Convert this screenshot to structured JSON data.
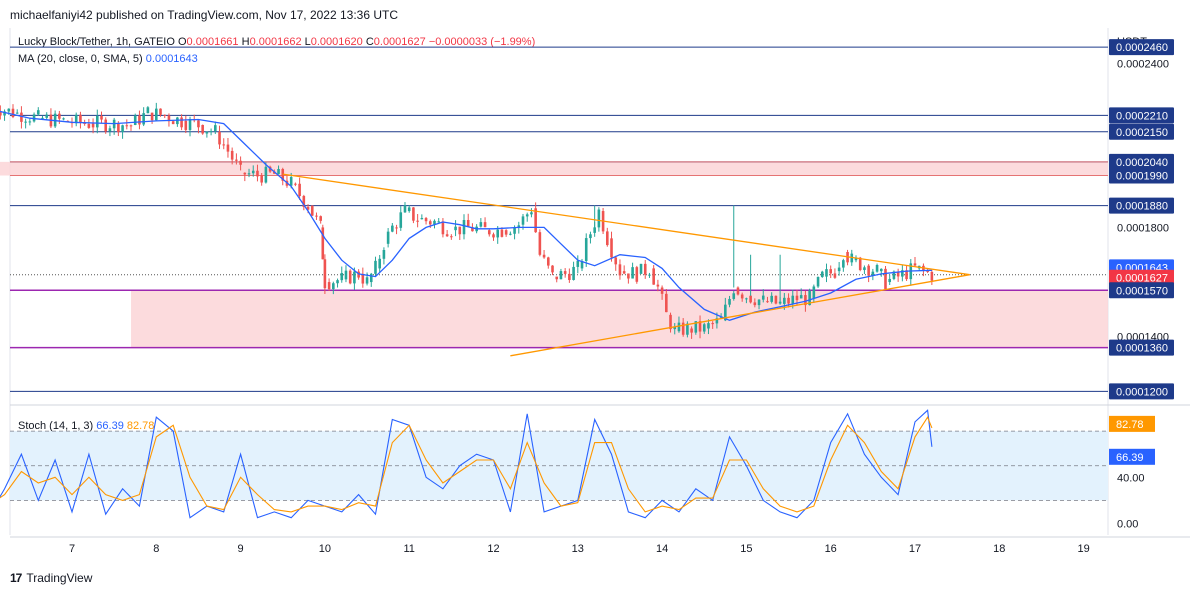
{
  "publisher": "michaelfaniyi42 published on TradingView.com, Nov 17, 2022 13:36 UTC",
  "symbol": {
    "name": "Lucky Block/Tether, 1h, GATEIO",
    "o_label": "O",
    "o": "0.0001661",
    "h_label": "H",
    "h": "0.0001662",
    "l_label": "L",
    "l": "0.0001620",
    "c_label": "C",
    "c": "0.0001627",
    "change": "−0.0000033 (−1.99%)"
  },
  "ma": {
    "label": "MA (20, close, 0, SMA, 5)",
    "value": "0.0001643"
  },
  "stoch": {
    "label": "Stoch (14, 1, 3)",
    "k": "66.39",
    "d": "82.78"
  },
  "currency": "USDT",
  "brand": "TradingView",
  "colors": {
    "bull": "#26a69a",
    "bear": "#ef5350",
    "ma": "#2962ff",
    "trendline": "#ff9800",
    "level": "#1e3a8a",
    "zone": "#fcd5d7",
    "zone_border": "#9c27b0",
    "stoch_band": "#e3f2fd"
  },
  "chart_data": [
    {
      "type": "candlestick",
      "x_tick_labels": [
        "7",
        "8",
        "9",
        "10",
        "11",
        "12",
        "13",
        "14",
        "15",
        "16",
        "17",
        "18",
        "19"
      ],
      "y_axis_labels": [
        "0.0002400",
        "0.0001800",
        "0.0001400"
      ],
      "ylim": [
        0.000115,
        0.000253
      ],
      "price_labels": [
        {
          "text": "0.0002460",
          "value": 0.000246,
          "kind": "level"
        },
        {
          "text": "0.0002210",
          "value": 0.000221,
          "kind": "level"
        },
        {
          "text": "0.0002150",
          "value": 0.000215,
          "kind": "level"
        },
        {
          "text": "0.0002040",
          "value": 0.000204,
          "kind": "level"
        },
        {
          "text": "0.0001990",
          "value": 0.000199,
          "kind": "level"
        },
        {
          "text": "0.0001880",
          "value": 0.000188,
          "kind": "level"
        },
        {
          "text": "0.0001643",
          "value": 0.0001643,
          "kind": "ma"
        },
        {
          "text": "0.0001627",
          "value": 0.0001627,
          "kind": "last"
        },
        {
          "text": "0.0001570",
          "value": 0.000157,
          "kind": "level"
        },
        {
          "text": "0.0001360",
          "value": 0.000136,
          "kind": "level"
        },
        {
          "text": "0.0001200",
          "value": 0.00012,
          "kind": "level"
        }
      ],
      "zones": [
        {
          "from": 0.000199,
          "to": 0.000204,
          "x_start": 6.0
        },
        {
          "from": 0.000136,
          "to": 0.000157,
          "x_start": 7.7
        }
      ],
      "trendlines": [
        {
          "x": [
            9.5,
            17.65
          ],
          "y": [
            0.0001995,
            0.0001627
          ]
        },
        {
          "x": [
            12.2,
            17.65
          ],
          "y": [
            0.000133,
            0.0001627
          ]
        }
      ],
      "close_path": [
        [
          6.0,
          0.000225
        ],
        [
          6.3,
          0.000222
        ],
        [
          6.6,
          0.00022
        ],
        [
          6.9,
          0.000219
        ],
        [
          7.2,
          0.000218
        ],
        [
          7.5,
          0.000218
        ],
        [
          7.7,
          0.0002175
        ],
        [
          7.9,
          0.000222
        ],
        [
          8.1,
          0.000221
        ],
        [
          8.3,
          0.000219
        ],
        [
          8.5,
          0.0002175
        ],
        [
          8.7,
          0.000215
        ],
        [
          8.85,
          0.000208
        ],
        [
          9.0,
          0.0002
        ],
        [
          9.2,
          0.000199
        ],
        [
          9.4,
          0.0001995
        ],
        [
          9.6,
          0.000196
        ],
        [
          9.8,
          0.000188
        ],
        [
          9.95,
          0.00018
        ],
        [
          10.0,
          0.00016
        ],
        [
          10.2,
          0.000161
        ],
        [
          10.4,
          0.000163
        ],
        [
          10.5,
          0.00016
        ],
        [
          10.6,
          0.000165
        ],
        [
          10.7,
          0.000174
        ],
        [
          10.8,
          0.00018
        ],
        [
          10.95,
          0.000186
        ],
        [
          11.1,
          0.000183
        ],
        [
          11.3,
          0.000182
        ],
        [
          11.5,
          0.000179
        ],
        [
          11.7,
          0.00018
        ],
        [
          11.9,
          0.000179
        ],
        [
          12.1,
          0.000179
        ],
        [
          12.3,
          0.000181
        ],
        [
          12.45,
          0.000187
        ],
        [
          12.55,
          0.00017
        ],
        [
          12.7,
          0.000162
        ],
        [
          12.85,
          0.000163
        ],
        [
          13.0,
          0.000165
        ],
        [
          13.15,
          0.000178
        ],
        [
          13.25,
          0.000186
        ],
        [
          13.35,
          0.000176
        ],
        [
          13.5,
          0.000164
        ],
        [
          13.7,
          0.000163
        ],
        [
          13.85,
          0.000165
        ],
        [
          13.95,
          0.000158
        ],
        [
          14.05,
          0.000148
        ],
        [
          14.15,
          0.000142
        ],
        [
          14.3,
          0.000143
        ],
        [
          14.5,
          0.000143
        ],
        [
          14.7,
          0.000146
        ],
        [
          14.85,
          0.000158
        ],
        [
          15.0,
          0.000155
        ],
        [
          15.2,
          0.000153
        ],
        [
          15.4,
          0.000152
        ],
        [
          15.6,
          0.000154
        ],
        [
          15.75,
          0.000154
        ],
        [
          15.9,
          0.000162
        ],
        [
          16.05,
          0.000164
        ],
        [
          16.15,
          0.000171
        ],
        [
          16.25,
          0.000168
        ],
        [
          16.4,
          0.000166
        ],
        [
          16.55,
          0.000164
        ],
        [
          16.65,
          0.00016
        ],
        [
          16.8,
          0.000162
        ],
        [
          17.0,
          0.000165
        ],
        [
          17.2,
          0.0001627
        ]
      ],
      "spikes": [
        {
          "x": 14.85,
          "high": 0.000188
        },
        {
          "x": 15.05,
          "high": 0.00017
        },
        {
          "x": 15.4,
          "high": 0.00017
        },
        {
          "x": 13.2,
          "high": 0.000188
        }
      ],
      "ma_path": [
        [
          6.0,
          0.0002235
        ],
        [
          6.5,
          0.00022
        ],
        [
          7.0,
          0.0002185
        ],
        [
          7.5,
          0.000218
        ],
        [
          8.0,
          0.000219
        ],
        [
          8.5,
          0.0002195
        ],
        [
          8.8,
          0.000218
        ],
        [
          9.0,
          0.000212
        ],
        [
          9.3,
          0.000203
        ],
        [
          9.6,
          0.000195
        ],
        [
          9.8,
          0.000186
        ],
        [
          10.0,
          0.000176
        ],
        [
          10.2,
          0.000168
        ],
        [
          10.4,
          0.000163
        ],
        [
          10.6,
          0.000162
        ],
        [
          10.8,
          0.000168
        ],
        [
          11.0,
          0.000176
        ],
        [
          11.2,
          0.00018
        ],
        [
          11.4,
          0.000182
        ],
        [
          11.6,
          0.000181
        ],
        [
          11.8,
          0.0001795
        ],
        [
          12.0,
          0.0001795
        ],
        [
          12.3,
          0.00018
        ],
        [
          12.6,
          0.00018
        ],
        [
          12.8,
          0.000174
        ],
        [
          13.0,
          0.000168
        ],
        [
          13.2,
          0.000166
        ],
        [
          13.5,
          0.00017
        ],
        [
          13.8,
          0.000169
        ],
        [
          14.0,
          0.000165
        ],
        [
          14.2,
          0.000158
        ],
        [
          14.5,
          0.00015
        ],
        [
          14.8,
          0.000146
        ],
        [
          15.1,
          0.000149
        ],
        [
          15.4,
          0.000151
        ],
        [
          15.7,
          0.000153
        ],
        [
          16.0,
          0.000156
        ],
        [
          16.3,
          0.000161
        ],
        [
          16.6,
          0.000163
        ],
        [
          16.9,
          0.000164
        ],
        [
          17.2,
          0.0001643
        ]
      ]
    },
    {
      "type": "line",
      "title": "Stoch (14, 1, 3)",
      "y_axis_labels": [
        "40.00",
        "0.00"
      ],
      "ylim": [
        -10,
        100
      ],
      "band": [
        20,
        80
      ],
      "value_labels": [
        {
          "text": "82.78",
          "series": "D",
          "value": 82.78
        },
        {
          "text": "66.39",
          "series": "K",
          "value": 66.39
        }
      ],
      "x_tick_labels": [
        "7",
        "8",
        "9",
        "10",
        "11",
        "12",
        "13",
        "14",
        "15",
        "16",
        "17",
        "18",
        "19"
      ],
      "series": [
        {
          "name": "K",
          "x": [
            6.0,
            6.2,
            6.4,
            6.6,
            6.8,
            7.0,
            7.2,
            7.4,
            7.6,
            7.8,
            8.0,
            8.2,
            8.4,
            8.6,
            8.8,
            9.0,
            9.2,
            9.4,
            9.6,
            9.8,
            10.0,
            10.2,
            10.4,
            10.6,
            10.8,
            11.0,
            11.2,
            11.4,
            11.6,
            11.8,
            12.0,
            12.2,
            12.4,
            12.6,
            12.8,
            13.0,
            13.2,
            13.4,
            13.6,
            13.8,
            14.0,
            14.2,
            14.4,
            14.6,
            14.8,
            15.0,
            15.2,
            15.4,
            15.6,
            15.8,
            16.0,
            16.2,
            16.4,
            16.6,
            16.8,
            17.0,
            17.15,
            17.2
          ],
          "values": [
            5,
            30,
            60,
            20,
            55,
            10,
            60,
            8,
            30,
            15,
            92,
            80,
            5,
            15,
            10,
            60,
            5,
            10,
            5,
            20,
            15,
            10,
            25,
            8,
            90,
            85,
            40,
            30,
            50,
            60,
            55,
            10,
            95,
            10,
            15,
            20,
            90,
            60,
            10,
            5,
            20,
            10,
            30,
            20,
            75,
            50,
            20,
            10,
            5,
            20,
            70,
            95,
            60,
            40,
            25,
            88,
            98,
            66.39
          ]
        },
        {
          "name": "D",
          "x": [
            6.0,
            6.2,
            6.4,
            6.6,
            6.8,
            7.0,
            7.2,
            7.4,
            7.6,
            7.8,
            8.0,
            8.2,
            8.4,
            8.6,
            8.8,
            9.0,
            9.2,
            9.4,
            9.6,
            9.8,
            10.0,
            10.2,
            10.4,
            10.6,
            10.8,
            11.0,
            11.2,
            11.4,
            11.6,
            11.8,
            12.0,
            12.2,
            12.4,
            12.6,
            12.8,
            13.0,
            13.2,
            13.4,
            13.6,
            13.8,
            14.0,
            14.2,
            14.4,
            14.6,
            14.8,
            15.0,
            15.2,
            15.4,
            15.6,
            15.8,
            16.0,
            16.2,
            16.4,
            16.6,
            16.8,
            17.0,
            17.15,
            17.2
          ],
          "values": [
            15,
            25,
            45,
            35,
            40,
            25,
            40,
            25,
            20,
            25,
            75,
            85,
            40,
            15,
            12,
            40,
            25,
            12,
            10,
            15,
            15,
            12,
            18,
            15,
            70,
            85,
            55,
            35,
            45,
            55,
            55,
            30,
            70,
            35,
            15,
            18,
            70,
            70,
            30,
            10,
            15,
            12,
            22,
            22,
            55,
            55,
            30,
            15,
            10,
            15,
            55,
            85,
            70,
            45,
            30,
            75,
            92,
            82.78
          ]
        }
      ]
    }
  ]
}
